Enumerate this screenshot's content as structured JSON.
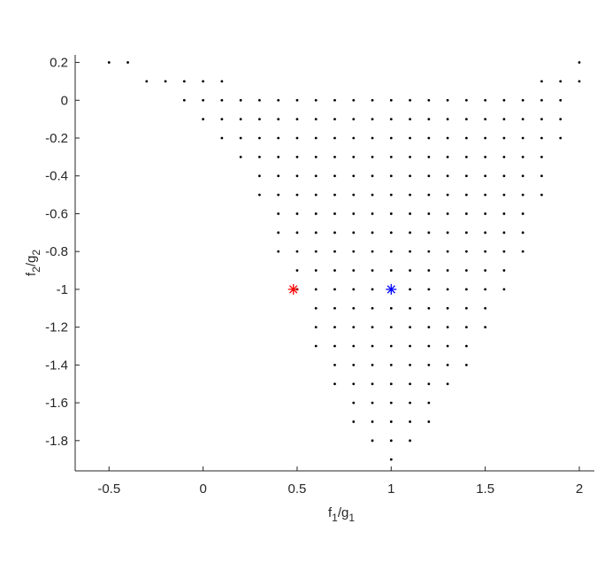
{
  "chart_data": {
    "type": "scatter",
    "xlabel": [
      "f",
      "1",
      "/g",
      "1"
    ],
    "ylabel": [
      "f",
      "2",
      "/g",
      "2"
    ],
    "xlim": [
      -0.68,
      2.08
    ],
    "ylim": [
      -1.96,
      0.24
    ],
    "xticks": [
      -0.5,
      0,
      0.5,
      1,
      1.5,
      2
    ],
    "yticks": [
      0.2,
      0,
      -0.2,
      -0.4,
      -0.6,
      -0.8,
      -1,
      -1.2,
      -1.4,
      -1.6,
      -1.8
    ],
    "color": "#000000",
    "x": [
      -0.5,
      -0.4,
      2.0,
      -0.3,
      -0.2,
      -0.1,
      0,
      0.1,
      1.8,
      1.9,
      2.0,
      -0.1,
      0,
      0.1,
      0.2,
      0.3,
      0.4,
      0.5,
      0.6,
      0.7,
      0.8,
      0.9,
      1.0,
      1.1,
      1.2,
      1.3,
      1.4,
      1.5,
      1.6,
      1.7,
      1.8,
      1.9,
      0,
      0.1,
      0.2,
      0.3,
      0.4,
      0.5,
      0.6,
      0.7,
      0.8,
      0.9,
      1.0,
      1.1,
      1.2,
      1.3,
      1.4,
      1.5,
      1.6,
      1.7,
      1.8,
      1.9,
      0.1,
      0.2,
      0.3,
      0.4,
      0.5,
      0.6,
      0.7,
      0.8,
      0.9,
      1.0,
      1.1,
      1.2,
      1.3,
      1.4,
      1.5,
      1.6,
      1.7,
      1.8,
      1.9,
      0.2,
      0.3,
      0.4,
      0.5,
      0.6,
      0.7,
      0.8,
      0.9,
      1.0,
      1.1,
      1.2,
      1.3,
      1.4,
      1.5,
      1.6,
      1.7,
      1.8,
      0.3,
      0.4,
      0.5,
      0.6,
      0.7,
      0.8,
      0.9,
      1.0,
      1.1,
      1.2,
      1.3,
      1.4,
      1.5,
      1.6,
      1.7,
      1.8,
      0.3,
      0.4,
      0.5,
      0.6,
      0.7,
      0.8,
      0.9,
      1.0,
      1.1,
      1.2,
      1.3,
      1.4,
      1.5,
      1.6,
      1.7,
      1.8,
      0.4,
      0.5,
      0.6,
      0.7,
      0.8,
      0.9,
      1.0,
      1.1,
      1.2,
      1.3,
      1.4,
      1.5,
      1.6,
      1.7,
      0.4,
      0.5,
      0.6,
      0.7,
      0.8,
      0.9,
      1.0,
      1.1,
      1.2,
      1.3,
      1.4,
      1.5,
      1.6,
      1.7,
      0.4,
      0.5,
      0.6,
      0.7,
      0.8,
      0.9,
      1.0,
      1.1,
      1.2,
      1.3,
      1.4,
      1.5,
      1.6,
      1.7,
      0.5,
      0.6,
      0.7,
      0.8,
      0.9,
      1.0,
      1.1,
      1.2,
      1.3,
      1.4,
      1.5,
      1.6,
      0.5,
      0.6,
      0.7,
      0.8,
      0.9,
      1.0,
      1.1,
      1.2,
      1.3,
      1.4,
      1.5,
      1.6,
      0.6,
      0.7,
      0.8,
      0.9,
      1.0,
      1.1,
      1.2,
      1.3,
      1.4,
      1.5,
      0.6,
      0.7,
      0.8,
      0.9,
      1.0,
      1.1,
      1.2,
      1.3,
      1.4,
      1.5,
      0.6,
      0.7,
      0.8,
      0.9,
      1.0,
      1.1,
      1.2,
      1.3,
      1.4,
      0.7,
      0.8,
      0.9,
      1.0,
      1.1,
      1.2,
      1.3,
      1.4,
      0.7,
      0.8,
      0.9,
      1.0,
      1.1,
      1.2,
      1.3,
      0.8,
      0.9,
      1.0,
      1.1,
      1.2,
      0.8,
      0.9,
      1.0,
      1.1,
      1.2,
      0.9,
      1.0,
      1.1,
      1.0
    ],
    "values": [
      0.2,
      0.2,
      0.2,
      0.1,
      0.1,
      0.1,
      0.1,
      0.1,
      0.1,
      0.1,
      0.1,
      0,
      0,
      0,
      0,
      0,
      0,
      0,
      0,
      0,
      0,
      0,
      0,
      0,
      0,
      0,
      0,
      0,
      0,
      0,
      0,
      0,
      -0.1,
      -0.1,
      -0.1,
      -0.1,
      -0.1,
      -0.1,
      -0.1,
      -0.1,
      -0.1,
      -0.1,
      -0.1,
      -0.1,
      -0.1,
      -0.1,
      -0.1,
      -0.1,
      -0.1,
      -0.1,
      -0.1,
      -0.1,
      -0.2,
      -0.2,
      -0.2,
      -0.2,
      -0.2,
      -0.2,
      -0.2,
      -0.2,
      -0.2,
      -0.2,
      -0.2,
      -0.2,
      -0.2,
      -0.2,
      -0.2,
      -0.2,
      -0.2,
      -0.2,
      -0.2,
      -0.3,
      -0.3,
      -0.3,
      -0.3,
      -0.3,
      -0.3,
      -0.3,
      -0.3,
      -0.3,
      -0.3,
      -0.3,
      -0.3,
      -0.3,
      -0.3,
      -0.3,
      -0.3,
      -0.3,
      -0.4,
      -0.4,
      -0.4,
      -0.4,
      -0.4,
      -0.4,
      -0.4,
      -0.4,
      -0.4,
      -0.4,
      -0.4,
      -0.4,
      -0.4,
      -0.4,
      -0.4,
      -0.4,
      -0.5,
      -0.5,
      -0.5,
      -0.5,
      -0.5,
      -0.5,
      -0.5,
      -0.5,
      -0.5,
      -0.5,
      -0.5,
      -0.5,
      -0.5,
      -0.5,
      -0.5,
      -0.5,
      -0.6,
      -0.6,
      -0.6,
      -0.6,
      -0.6,
      -0.6,
      -0.6,
      -0.6,
      -0.6,
      -0.6,
      -0.6,
      -0.6,
      -0.6,
      -0.6,
      -0.7,
      -0.7,
      -0.7,
      -0.7,
      -0.7,
      -0.7,
      -0.7,
      -0.7,
      -0.7,
      -0.7,
      -0.7,
      -0.7,
      -0.7,
      -0.7,
      -0.8,
      -0.8,
      -0.8,
      -0.8,
      -0.8,
      -0.8,
      -0.8,
      -0.8,
      -0.8,
      -0.8,
      -0.8,
      -0.8,
      -0.8,
      -0.8,
      -0.9,
      -0.9,
      -0.9,
      -0.9,
      -0.9,
      -0.9,
      -0.9,
      -0.9,
      -0.9,
      -0.9,
      -0.9,
      -0.9,
      -1,
      -1,
      -1,
      -1,
      -1,
      -1,
      -1,
      -1,
      -1,
      -1,
      -1,
      -1,
      -1.1,
      -1.1,
      -1.1,
      -1.1,
      -1.1,
      -1.1,
      -1.1,
      -1.1,
      -1.1,
      -1.1,
      -1.2,
      -1.2,
      -1.2,
      -1.2,
      -1.2,
      -1.2,
      -1.2,
      -1.2,
      -1.2,
      -1.2,
      -1.3,
      -1.3,
      -1.3,
      -1.3,
      -1.3,
      -1.3,
      -1.3,
      -1.3,
      -1.3,
      -1.4,
      -1.4,
      -1.4,
      -1.4,
      -1.4,
      -1.4,
      -1.4,
      -1.4,
      -1.5,
      -1.5,
      -1.5,
      -1.5,
      -1.5,
      -1.5,
      -1.5,
      -1.6,
      -1.6,
      -1.6,
      -1.6,
      -1.6,
      -1.7,
      -1.7,
      -1.7,
      -1.7,
      -1.7,
      -1.8,
      -1.8,
      -1.8,
      -1.9
    ],
    "highlights": [
      {
        "x": 0.48,
        "y": -1,
        "color": "#ff0000"
      },
      {
        "x": 1,
        "y": -1,
        "color": "#0000ff"
      }
    ]
  }
}
